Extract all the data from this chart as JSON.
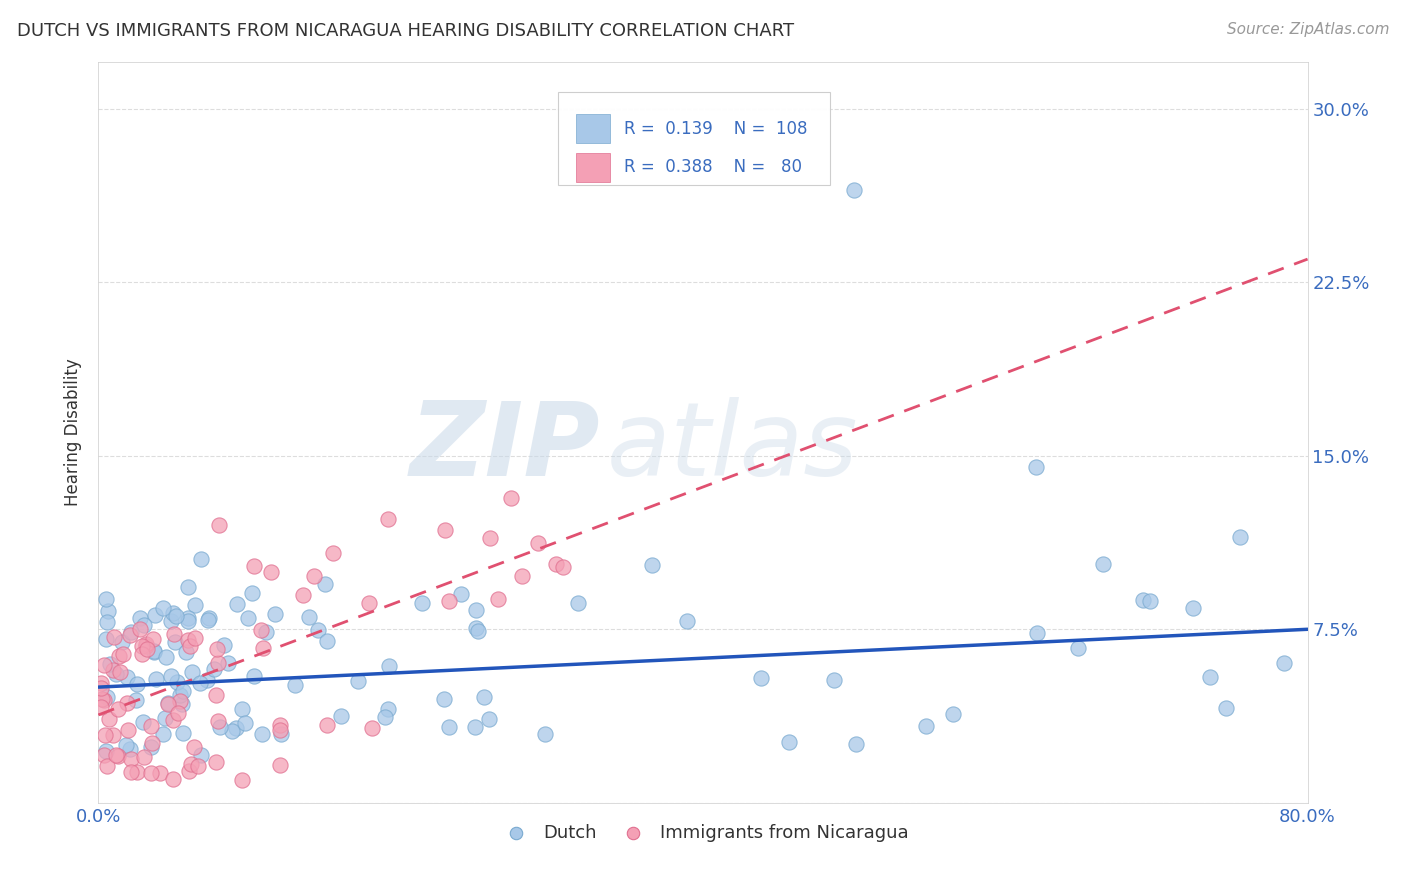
{
  "title": "DUTCH VS IMMIGRANTS FROM NICARAGUA HEARING DISABILITY CORRELATION CHART",
  "source": "Source: ZipAtlas.com",
  "ylabel": "Hearing Disability",
  "xlim": [
    0.0,
    0.8
  ],
  "ylim": [
    0.0,
    0.32
  ],
  "ytick_positions": [
    0.0,
    0.075,
    0.15,
    0.225,
    0.3
  ],
  "xtick_positions": [
    0.0,
    0.1,
    0.2,
    0.3,
    0.4,
    0.5,
    0.6,
    0.7,
    0.8
  ],
  "dutch_color": "#a8c8e8",
  "dutch_edge_color": "#7aaad0",
  "nicaragua_color": "#f4a0b5",
  "nicaragua_edge_color": "#e07090",
  "dutch_line_color": "#2255bb",
  "nicaragua_line_color": "#e05070",
  "watermark_zip": "ZIP",
  "watermark_atlas": "atlas",
  "legend_R_dutch": "0.139",
  "legend_N_dutch": "108",
  "legend_R_nicaragua": "0.388",
  "legend_N_nicaragua": "80",
  "background_color": "#ffffff",
  "grid_color": "#dddddd",
  "title_color": "#333333",
  "tick_color": "#3a6cbf",
  "source_color": "#999999"
}
